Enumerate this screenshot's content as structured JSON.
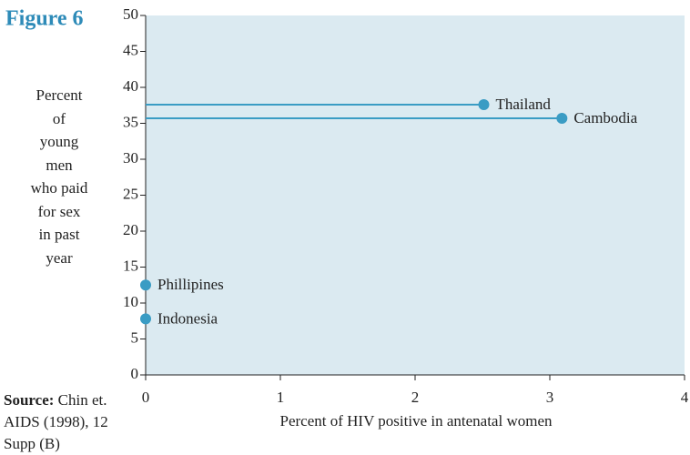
{
  "chart_data": {
    "type": "scatter",
    "title": "Figure 6",
    "ylabel": [
      "Percent",
      "of",
      "young",
      "men",
      "who paid",
      "for sex",
      "in past",
      "year"
    ],
    "xlabel": "Percent of HIV positive in antenatal women",
    "source_label": "Source:",
    "source": "Chin et. AIDS (1998), 12 Supp (B)",
    "color": "#3a9cc4",
    "background": "#dbeaf1",
    "points": [
      {
        "name": "Thailand",
        "x": 2.51,
        "y": 37.6
      },
      {
        "name": "Cambodia",
        "x": 3.09,
        "y": 35.7
      },
      {
        "name": "Phillipines",
        "x": 0,
        "y": 12.5
      },
      {
        "name": "Indonesia",
        "x": 0,
        "y": 7.8
      }
    ],
    "xlim": [
      0,
      4
    ],
    "xticks": [
      0,
      1,
      2,
      3,
      4
    ],
    "ylim": [
      0,
      50
    ],
    "yticks": [
      0,
      5,
      10,
      15,
      20,
      25,
      30,
      35,
      40,
      45,
      50
    ]
  }
}
